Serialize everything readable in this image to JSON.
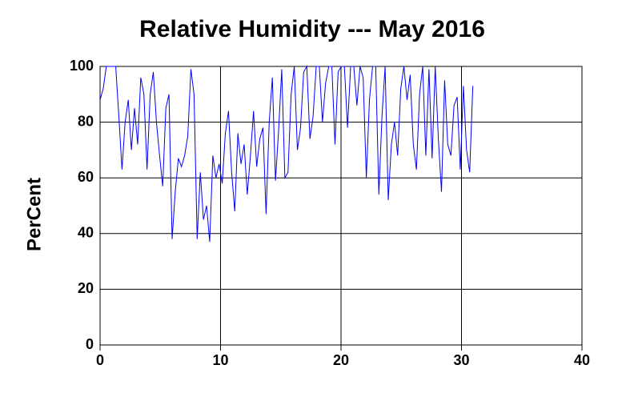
{
  "chart_data": {
    "type": "line",
    "title": "Relative Humidity --- May 2016",
    "y_label": "PerCent",
    "x": [
      0,
      0.26,
      0.52,
      0.78,
      1.04,
      1.3,
      1.56,
      1.82,
      2.08,
      2.34,
      2.6,
      2.86,
      3.12,
      3.38,
      3.64,
      3.9,
      4.16,
      4.42,
      4.68,
      4.94,
      5.2,
      5.46,
      5.72,
      5.98,
      6.24,
      6.5,
      6.76,
      7.02,
      7.28,
      7.54,
      7.8,
      8.06,
      8.32,
      8.58,
      8.84,
      9.1,
      9.36,
      9.62,
      9.88,
      10.14,
      10.4,
      10.66,
      10.92,
      11.18,
      11.44,
      11.7,
      11.96,
      12.22,
      12.48,
      12.74,
      13.0,
      13.26,
      13.52,
      13.78,
      14.04,
      14.3,
      14.56,
      14.82,
      15.08,
      15.34,
      15.6,
      15.86,
      16.12,
      16.38,
      16.64,
      16.9,
      17.16,
      17.42,
      17.68,
      17.94,
      18.2,
      18.46,
      18.72,
      18.98,
      19.24,
      19.5,
      19.76,
      20.02,
      20.28,
      20.54,
      20.8,
      21.06,
      21.32,
      21.58,
      21.84,
      22.1,
      22.36,
      22.62,
      22.88,
      23.14,
      23.4,
      23.66,
      23.92,
      24.18,
      24.44,
      24.7,
      24.96,
      25.22,
      25.48,
      25.74,
      26.0,
      26.26,
      26.52,
      26.78,
      27.04,
      27.3,
      27.56,
      27.82,
      28.08,
      28.34,
      28.6,
      28.86,
      29.12,
      29.38,
      29.64,
      29.9,
      30.16,
      30.42,
      30.68,
      30.94
    ],
    "values": [
      88,
      92,
      100,
      100,
      100,
      100,
      82,
      63,
      80,
      88,
      70,
      85,
      72,
      96,
      90,
      63,
      90,
      98,
      80,
      68,
      57,
      85,
      90,
      38,
      55,
      67,
      64,
      68,
      75,
      99,
      90,
      38,
      62,
      45,
      50,
      37,
      68,
      60,
      65,
      58,
      76,
      84,
      62,
      48,
      76,
      65,
      72,
      54,
      68,
      84,
      64,
      74,
      78,
      47,
      80,
      96,
      59,
      77,
      99,
      60,
      62,
      90,
      100,
      70,
      78,
      98,
      100,
      74,
      82,
      100,
      100,
      80,
      94,
      100,
      100,
      72,
      98,
      100,
      100,
      78,
      100,
      100,
      86,
      100,
      96,
      60,
      88,
      100,
      100,
      54,
      82,
      100,
      52,
      72,
      80,
      68,
      92,
      100,
      88,
      97,
      72,
      63,
      90,
      100,
      68,
      99,
      67,
      100,
      74,
      55,
      95,
      72,
      68,
      86,
      89,
      63,
      93,
      70,
      62,
      93
    ],
    "color": "#0000ff",
    "xlim": [
      0,
      40
    ],
    "ylim": [
      0,
      100
    ],
    "xticks": [
      0,
      10,
      20,
      30,
      40
    ],
    "yticks": [
      0,
      20,
      40,
      60,
      80,
      100
    ],
    "grid": true
  }
}
